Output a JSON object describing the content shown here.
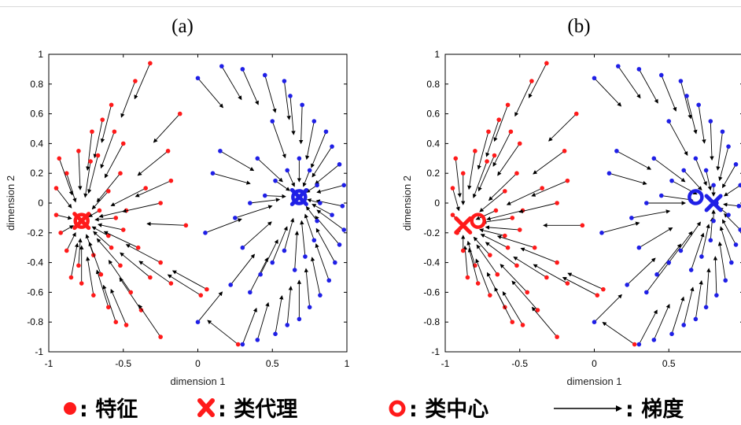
{
  "colors": {
    "red": "#ff1a1a",
    "blue": "#1f1fe6",
    "arrow": "#000000",
    "axis": "#000000"
  },
  "legend": {
    "feature_label": ": 特征",
    "proxy_label": ": 类代理",
    "center_label": ": 类中心",
    "gradient_label": ": 梯度"
  },
  "chart_data": [
    {
      "type": "scatter",
      "panel_title": "(a)",
      "xlabel": "dimension 1",
      "ylabel": "dimension 2",
      "xlim": [
        -1,
        1
      ],
      "ylim": [
        -1,
        1
      ],
      "xticks": [
        "-1",
        "-0.5",
        "0",
        "0.5",
        "1"
      ],
      "yticks": [
        "-1",
        "-0.8",
        "-0.6",
        "-0.4",
        "-0.2",
        "0",
        "0.2",
        "0.4",
        "0.6",
        "0.8",
        "1"
      ],
      "grid": false,
      "proxies": [
        {
          "class": "red",
          "x": -0.78,
          "y": -0.12
        },
        {
          "class": "blue",
          "x": 0.68,
          "y": 0.04
        }
      ],
      "centers": [
        {
          "class": "red",
          "x": -0.78,
          "y": -0.12
        },
        {
          "class": "blue",
          "x": 0.68,
          "y": 0.04
        }
      ],
      "red_features": [
        [
          -0.32,
          0.94
        ],
        [
          -0.42,
          0.82
        ],
        [
          -0.58,
          0.66
        ],
        [
          -0.64,
          0.56
        ],
        [
          -0.56,
          0.48
        ],
        [
          -0.71,
          0.48
        ],
        [
          -0.8,
          0.35
        ],
        [
          -0.88,
          0.2
        ],
        [
          -0.93,
          0.3
        ],
        [
          -0.95,
          0.1
        ],
        [
          -0.72,
          0.28
        ],
        [
          -0.67,
          0.32
        ],
        [
          -0.5,
          0.4
        ],
        [
          -0.52,
          0.2
        ],
        [
          -0.6,
          0.08
        ],
        [
          -0.48,
          -0.05
        ],
        [
          -0.55,
          -0.1
        ],
        [
          -0.5,
          -0.18
        ],
        [
          -0.58,
          -0.3
        ],
        [
          -0.7,
          -0.35
        ],
        [
          -0.8,
          -0.42
        ],
        [
          -0.85,
          -0.5
        ],
        [
          -0.78,
          -0.54
        ],
        [
          -0.88,
          -0.32
        ],
        [
          -0.92,
          -0.2
        ],
        [
          -0.95,
          -0.08
        ],
        [
          -0.7,
          -0.62
        ],
        [
          -0.6,
          -0.7
        ],
        [
          -0.55,
          -0.8
        ],
        [
          -0.48,
          -0.82
        ],
        [
          -0.38,
          -0.72
        ],
        [
          -0.32,
          -0.5
        ],
        [
          -0.25,
          -0.9
        ],
        [
          -0.18,
          -0.54
        ],
        [
          -0.25,
          -0.4
        ],
        [
          -0.45,
          -0.6
        ],
        [
          -0.35,
          0.1
        ],
        [
          -0.25,
          0.0
        ],
        [
          -0.2,
          0.35
        ],
        [
          -0.12,
          0.6
        ],
        [
          -0.18,
          0.15
        ],
        [
          -0.66,
          -0.05
        ],
        [
          -0.6,
          -0.22
        ],
        [
          -0.65,
          -0.48
        ],
        [
          -0.52,
          -0.42
        ],
        [
          -0.4,
          -0.3
        ],
        [
          0.27,
          -0.95
        ],
        [
          0.02,
          -0.62
        ],
        [
          -0.08,
          -0.15
        ],
        [
          0.06,
          -0.58
        ]
      ],
      "blue_features": [
        [
          0.16,
          0.92
        ],
        [
          0.0,
          0.84
        ],
        [
          0.3,
          0.9
        ],
        [
          0.45,
          0.86
        ],
        [
          0.58,
          0.82
        ],
        [
          0.62,
          0.72
        ],
        [
          0.7,
          0.66
        ],
        [
          0.78,
          0.55
        ],
        [
          0.86,
          0.48
        ],
        [
          0.9,
          0.38
        ],
        [
          0.95,
          0.26
        ],
        [
          0.98,
          0.12
        ],
        [
          0.97,
          -0.02
        ],
        [
          0.98,
          -0.18
        ],
        [
          0.95,
          -0.28
        ],
        [
          0.92,
          -0.4
        ],
        [
          0.88,
          -0.52
        ],
        [
          0.82,
          -0.62
        ],
        [
          0.75,
          -0.7
        ],
        [
          0.68,
          -0.78
        ],
        [
          0.6,
          -0.82
        ],
        [
          0.52,
          -0.88
        ],
        [
          0.4,
          -0.92
        ],
        [
          0.3,
          -0.95
        ],
        [
          0.22,
          -0.55
        ],
        [
          0.35,
          -0.6
        ],
        [
          0.42,
          -0.48
        ],
        [
          0.5,
          -0.4
        ],
        [
          0.58,
          -0.32
        ],
        [
          0.65,
          -0.45
        ],
        [
          0.72,
          -0.36
        ],
        [
          0.78,
          -0.25
        ],
        [
          0.8,
          -0.12
        ],
        [
          0.82,
          0.0
        ],
        [
          0.8,
          0.12
        ],
        [
          0.75,
          0.22
        ],
        [
          0.68,
          0.3
        ],
        [
          0.6,
          0.22
        ],
        [
          0.52,
          0.15
        ],
        [
          0.45,
          0.05
        ],
        [
          0.35,
          0.0
        ],
        [
          0.25,
          -0.1
        ],
        [
          0.3,
          -0.3
        ],
        [
          0.1,
          0.2
        ],
        [
          0.15,
          0.35
        ],
        [
          0.0,
          -0.8
        ],
        [
          0.05,
          -0.2
        ],
        [
          0.4,
          0.3
        ],
        [
          0.5,
          0.55
        ],
        [
          0.9,
          -0.08
        ]
      ]
    },
    {
      "type": "scatter",
      "panel_title": "(b)",
      "xlabel": "dimension 1",
      "ylabel": "dimension 2",
      "xlim": [
        -1,
        1
      ],
      "ylim": [
        -1,
        1
      ],
      "xticks": [
        "-1",
        "-0.5",
        "0",
        "0.5",
        "1"
      ],
      "yticks": [
        "-1",
        "-0.8",
        "-0.6",
        "-0.4",
        "-0.2",
        "0",
        "0.2",
        "0.4",
        "0.6",
        "0.8",
        "1"
      ],
      "grid": false,
      "proxies": [
        {
          "class": "red",
          "x": -0.88,
          "y": -0.15
        },
        {
          "class": "blue",
          "x": 0.8,
          "y": 0.0
        }
      ],
      "centers": [
        {
          "class": "red",
          "x": -0.78,
          "y": -0.12
        },
        {
          "class": "blue",
          "x": 0.68,
          "y": 0.04
        }
      ],
      "red_features": [
        [
          -0.32,
          0.94
        ],
        [
          -0.42,
          0.82
        ],
        [
          -0.58,
          0.66
        ],
        [
          -0.64,
          0.56
        ],
        [
          -0.56,
          0.48
        ],
        [
          -0.71,
          0.48
        ],
        [
          -0.8,
          0.35
        ],
        [
          -0.88,
          0.2
        ],
        [
          -0.93,
          0.3
        ],
        [
          -0.95,
          0.1
        ],
        [
          -0.72,
          0.28
        ],
        [
          -0.67,
          0.32
        ],
        [
          -0.5,
          0.4
        ],
        [
          -0.52,
          0.2
        ],
        [
          -0.6,
          0.08
        ],
        [
          -0.48,
          -0.05
        ],
        [
          -0.55,
          -0.1
        ],
        [
          -0.5,
          -0.18
        ],
        [
          -0.58,
          -0.3
        ],
        [
          -0.7,
          -0.35
        ],
        [
          -0.8,
          -0.42
        ],
        [
          -0.85,
          -0.5
        ],
        [
          -0.78,
          -0.54
        ],
        [
          -0.88,
          -0.32
        ],
        [
          -0.92,
          -0.2
        ],
        [
          -0.95,
          -0.08
        ],
        [
          -0.7,
          -0.62
        ],
        [
          -0.6,
          -0.7
        ],
        [
          -0.55,
          -0.8
        ],
        [
          -0.48,
          -0.82
        ],
        [
          -0.38,
          -0.72
        ],
        [
          -0.32,
          -0.5
        ],
        [
          -0.25,
          -0.9
        ],
        [
          -0.18,
          -0.54
        ],
        [
          -0.25,
          -0.4
        ],
        [
          -0.45,
          -0.6
        ],
        [
          -0.35,
          0.1
        ],
        [
          -0.25,
          0.0
        ],
        [
          -0.2,
          0.35
        ],
        [
          -0.12,
          0.6
        ],
        [
          -0.18,
          0.15
        ],
        [
          -0.66,
          -0.05
        ],
        [
          -0.6,
          -0.22
        ],
        [
          -0.65,
          -0.48
        ],
        [
          -0.52,
          -0.42
        ],
        [
          -0.4,
          -0.3
        ],
        [
          0.27,
          -0.95
        ],
        [
          0.02,
          -0.62
        ],
        [
          -0.08,
          -0.15
        ],
        [
          0.06,
          -0.58
        ]
      ],
      "blue_features": [
        [
          0.16,
          0.92
        ],
        [
          0.0,
          0.84
        ],
        [
          0.3,
          0.9
        ],
        [
          0.45,
          0.86
        ],
        [
          0.58,
          0.82
        ],
        [
          0.62,
          0.72
        ],
        [
          0.7,
          0.66
        ],
        [
          0.78,
          0.55
        ],
        [
          0.86,
          0.48
        ],
        [
          0.9,
          0.38
        ],
        [
          0.95,
          0.26
        ],
        [
          0.98,
          0.12
        ],
        [
          0.97,
          -0.02
        ],
        [
          0.98,
          -0.18
        ],
        [
          0.95,
          -0.28
        ],
        [
          0.92,
          -0.4
        ],
        [
          0.88,
          -0.52
        ],
        [
          0.82,
          -0.62
        ],
        [
          0.75,
          -0.7
        ],
        [
          0.68,
          -0.78
        ],
        [
          0.6,
          -0.82
        ],
        [
          0.52,
          -0.88
        ],
        [
          0.4,
          -0.92
        ],
        [
          0.3,
          -0.95
        ],
        [
          0.22,
          -0.55
        ],
        [
          0.35,
          -0.6
        ],
        [
          0.42,
          -0.48
        ],
        [
          0.5,
          -0.4
        ],
        [
          0.58,
          -0.32
        ],
        [
          0.65,
          -0.45
        ],
        [
          0.72,
          -0.36
        ],
        [
          0.78,
          -0.25
        ],
        [
          0.8,
          -0.12
        ],
        [
          0.82,
          0.0
        ],
        [
          0.8,
          0.12
        ],
        [
          0.75,
          0.22
        ],
        [
          0.68,
          0.3
        ],
        [
          0.6,
          0.22
        ],
        [
          0.52,
          0.15
        ],
        [
          0.45,
          0.05
        ],
        [
          0.35,
          0.0
        ],
        [
          0.25,
          -0.1
        ],
        [
          0.3,
          -0.3
        ],
        [
          0.1,
          0.2
        ],
        [
          0.15,
          0.35
        ],
        [
          0.0,
          -0.8
        ],
        [
          0.05,
          -0.2
        ],
        [
          0.4,
          0.3
        ],
        [
          0.5,
          0.55
        ],
        [
          0.9,
          -0.08
        ]
      ]
    }
  ]
}
